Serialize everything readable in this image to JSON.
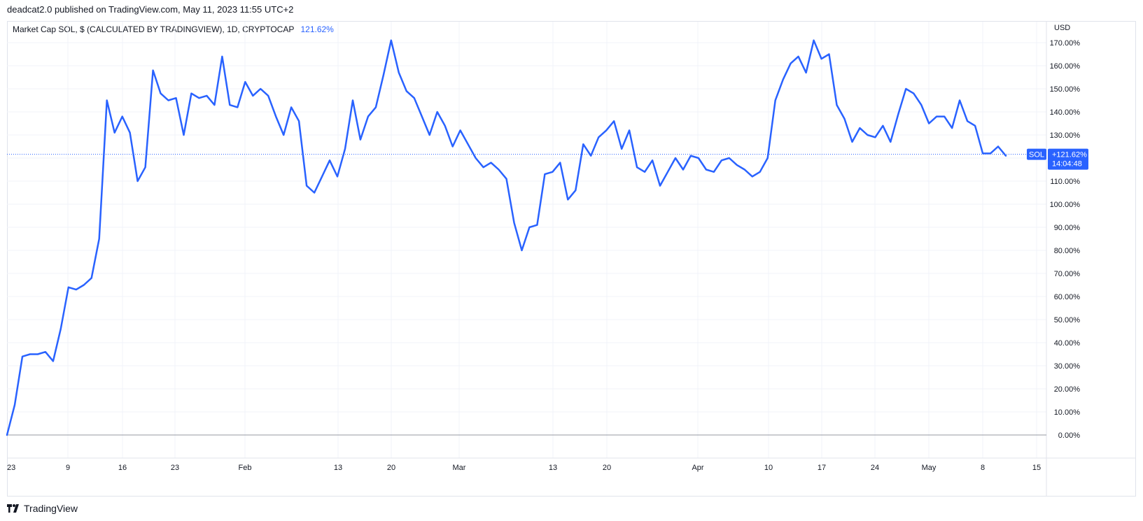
{
  "header": {
    "publish_line": "deadcat2.0 published on TradingView.com, May 11, 2023 11:55 UTC+2",
    "legend_text": "Market Cap SOL, $ (CALCULATED BY TRADINGVIEW), 1D, CRYPTOCAP",
    "legend_value": "121.62%"
  },
  "footer": {
    "brand": "TradingView"
  },
  "colors": {
    "line": "#2962ff",
    "accent": "#2962ff",
    "grid": "#f0f3fa",
    "axis_text": "#131722",
    "baseline": "#787b86"
  },
  "chart_data": {
    "type": "line",
    "title": "Market Cap SOL, $ (CALCULATED BY TRADINGVIEW), 1D, CRYPTOCAP",
    "ylabel": "USD",
    "ylim": [
      0,
      170
    ],
    "y_scale_unit": "percent change",
    "y_ticks": [
      "0.00%",
      "10.00%",
      "20.00%",
      "30.00%",
      "40.00%",
      "50.00%",
      "60.00%",
      "70.00%",
      "80.00%",
      "90.00%",
      "100.00%",
      "110.00%",
      "120.00%",
      "130.00%",
      "140.00%",
      "150.00%",
      "160.00%",
      "170.00%"
    ],
    "x_ticks": [
      "23",
      "9",
      "16",
      "23",
      "Feb",
      "13",
      "20",
      "Mar",
      "13",
      "20",
      "Apr",
      "10",
      "17",
      "24",
      "May",
      "8",
      "15"
    ],
    "grid": true,
    "series": [
      {
        "name": "SOL",
        "values": [
          0,
          13,
          34,
          35,
          35,
          36,
          32,
          46,
          64,
          63,
          65,
          68,
          85,
          145,
          131,
          138,
          131,
          110,
          116,
          158,
          148,
          145,
          146,
          130,
          148,
          146,
          147,
          143,
          164,
          143,
          142,
          153,
          147,
          150,
          147,
          138,
          130,
          142,
          136,
          108,
          105,
          112,
          119,
          112,
          124,
          145,
          128,
          138,
          142,
          156,
          171,
          157,
          149,
          146,
          138,
          130,
          140,
          134,
          125,
          132,
          126,
          120,
          116,
          118,
          115,
          111,
          92,
          80,
          90,
          91,
          113,
          114,
          118,
          102,
          106,
          126,
          121,
          129,
          132,
          136,
          124,
          132,
          116,
          114,
          119,
          108,
          114,
          120,
          115,
          121,
          120,
          115,
          114,
          119,
          120,
          117,
          115,
          112,
          114,
          120,
          145,
          154,
          161,
          164,
          157,
          171,
          163,
          165,
          143,
          137,
          127,
          133,
          130,
          129,
          134,
          127,
          139,
          150,
          148,
          143,
          135,
          138,
          138,
          133,
          145,
          136,
          134,
          122,
          122,
          125,
          121
        ]
      }
    ],
    "last_value_label": "+121.62%",
    "last_value_name": "SOL",
    "countdown": "14:04:48",
    "last_value": 121.62
  }
}
